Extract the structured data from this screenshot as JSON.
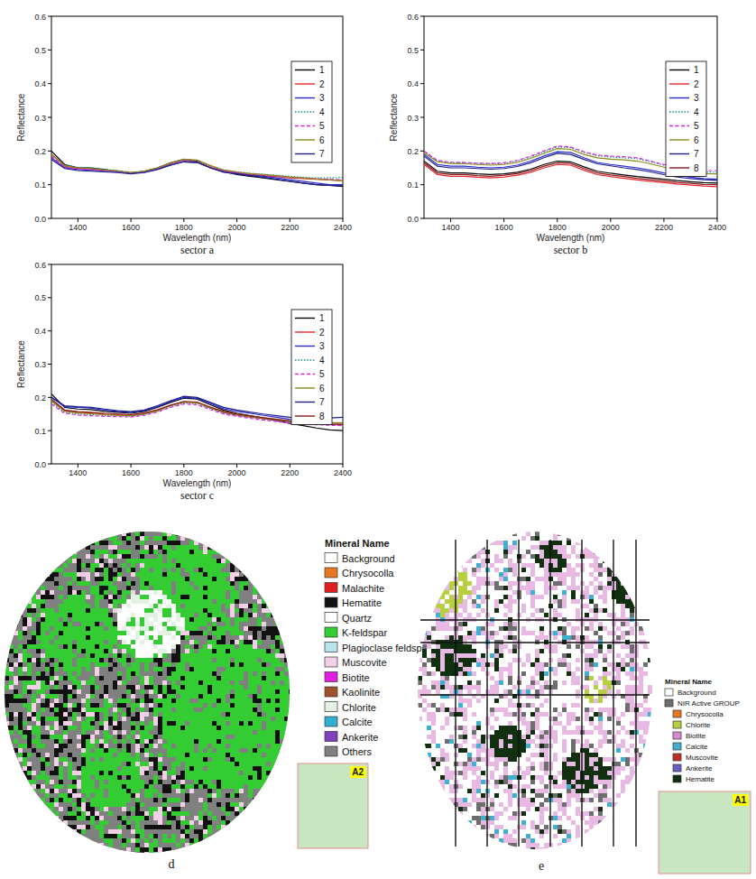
{
  "chart_data": [
    {
      "type": "line",
      "title": "sector a",
      "xlabel": "Wavelength (nm)",
      "ylabel": "Reflectance",
      "x": [
        1300,
        1350,
        1400,
        1450,
        1500,
        1550,
        1600,
        1650,
        1700,
        1750,
        1800,
        1850,
        1900,
        1950,
        2000,
        2050,
        2100,
        2150,
        2200,
        2250,
        2300,
        2350,
        2400
      ],
      "xlim": [
        1300,
        2400
      ],
      "ylim": [
        0,
        0.6
      ],
      "xticks": [
        1400,
        1600,
        1800,
        2000,
        2200,
        2400
      ],
      "yticks": [
        {
          "value": 0,
          "label": "0.0"
        },
        0.1,
        0.2,
        0.3,
        0.4,
        0.5,
        0.6
      ],
      "legend": "upper right",
      "series": [
        {
          "name": "1",
          "color": "#000000",
          "values": [
            0.2,
            0.16,
            0.15,
            0.15,
            0.145,
            0.14,
            0.135,
            0.14,
            0.15,
            0.165,
            0.175,
            0.17,
            0.15,
            0.14,
            0.13,
            0.125,
            0.12,
            0.115,
            0.11,
            0.105,
            0.1,
            0.098,
            0.095
          ]
        },
        {
          "name": "2",
          "color": "#e8262b",
          "values": [
            0.19,
            0.155,
            0.148,
            0.147,
            0.143,
            0.14,
            0.135,
            0.138,
            0.147,
            0.16,
            0.17,
            0.168,
            0.152,
            0.14,
            0.135,
            0.13,
            0.127,
            0.124,
            0.12,
            0.118,
            0.116,
            0.114,
            0.112
          ]
        },
        {
          "name": "3",
          "color": "#2a2ad0",
          "values": [
            0.18,
            0.15,
            0.145,
            0.143,
            0.14,
            0.138,
            0.134,
            0.137,
            0.146,
            0.158,
            0.168,
            0.166,
            0.15,
            0.138,
            0.133,
            0.128,
            0.125,
            0.12,
            0.115,
            0.11,
            0.105,
            0.1,
            0.1
          ]
        },
        {
          "name": "4",
          "color": "#138a8a",
          "line_style": "dotted",
          "values": [
            0.19,
            0.158,
            0.152,
            0.15,
            0.146,
            0.142,
            0.137,
            0.14,
            0.148,
            0.162,
            0.172,
            0.17,
            0.155,
            0.143,
            0.138,
            0.134,
            0.131,
            0.128,
            0.125,
            0.122,
            0.12,
            0.12,
            0.122
          ]
        },
        {
          "name": "5",
          "color": "#e020e0",
          "line_style": "dashed",
          "values": [
            0.185,
            0.152,
            0.146,
            0.145,
            0.142,
            0.139,
            0.135,
            0.139,
            0.148,
            0.163,
            0.174,
            0.172,
            0.156,
            0.142,
            0.136,
            0.132,
            0.129,
            0.126,
            0.122,
            0.12,
            0.118,
            0.116,
            0.115
          ]
        },
        {
          "name": "6",
          "color": "#8a8a1a",
          "values": [
            0.19,
            0.156,
            0.15,
            0.148,
            0.144,
            0.141,
            0.136,
            0.14,
            0.15,
            0.165,
            0.176,
            0.173,
            0.157,
            0.144,
            0.138,
            0.133,
            0.13,
            0.127,
            0.123,
            0.12,
            0.117,
            0.114,
            0.112
          ]
        },
        {
          "name": "7",
          "color": "#20208a",
          "values": [
            0.175,
            0.148,
            0.142,
            0.14,
            0.138,
            0.136,
            0.132,
            0.136,
            0.145,
            0.158,
            0.168,
            0.166,
            0.15,
            0.137,
            0.132,
            0.127,
            0.122,
            0.116,
            0.11,
            0.105,
            0.1,
            0.098,
            0.097
          ]
        }
      ]
    },
    {
      "type": "line",
      "title": "sector b",
      "xlabel": "Wavelength (nm)",
      "ylabel": "Reflectance",
      "x": [
        1300,
        1350,
        1400,
        1450,
        1500,
        1550,
        1600,
        1650,
        1700,
        1750,
        1800,
        1850,
        1900,
        1950,
        2000,
        2050,
        2100,
        2150,
        2200,
        2250,
        2300,
        2350,
        2400
      ],
      "xlim": [
        1300,
        2400
      ],
      "ylim": [
        0,
        0.6
      ],
      "xticks": [
        1400,
        1600,
        1800,
        2000,
        2200,
        2400
      ],
      "yticks": [
        {
          "value": 0,
          "label": "0.0"
        },
        0.1,
        0.2,
        0.3,
        0.4,
        0.5,
        0.6
      ],
      "legend": "upper right",
      "series": [
        {
          "name": "1",
          "color": "#000000",
          "values": [
            0.17,
            0.14,
            0.135,
            0.135,
            0.132,
            0.13,
            0.132,
            0.137,
            0.146,
            0.16,
            0.17,
            0.168,
            0.153,
            0.14,
            0.134,
            0.129,
            0.124,
            0.12,
            0.116,
            0.112,
            0.109,
            0.106,
            0.105
          ]
        },
        {
          "name": "2",
          "color": "#e8262b",
          "values": [
            0.16,
            0.13,
            0.125,
            0.125,
            0.122,
            0.12,
            0.123,
            0.128,
            0.137,
            0.15,
            0.16,
            0.158,
            0.143,
            0.13,
            0.124,
            0.119,
            0.114,
            0.11,
            0.106,
            0.102,
            0.099,
            0.096,
            0.094
          ]
        },
        {
          "name": "3",
          "color": "#2a2ad0",
          "values": [
            0.19,
            0.16,
            0.155,
            0.155,
            0.152,
            0.15,
            0.152,
            0.158,
            0.17,
            0.185,
            0.198,
            0.196,
            0.18,
            0.166,
            0.16,
            0.155,
            0.15,
            0.143,
            0.135,
            0.128,
            0.122,
            0.118,
            0.116
          ]
        },
        {
          "name": "4",
          "color": "#138a8a",
          "line_style": "dotted",
          "values": [
            0.2,
            0.17,
            0.165,
            0.165,
            0.163,
            0.162,
            0.163,
            0.17,
            0.182,
            0.198,
            0.212,
            0.21,
            0.196,
            0.186,
            0.182,
            0.18,
            0.177,
            0.168,
            0.158,
            0.148,
            0.142,
            0.138,
            0.137
          ]
        },
        {
          "name": "5",
          "color": "#e020e0",
          "line_style": "dashed",
          "values": [
            0.2,
            0.172,
            0.167,
            0.166,
            0.164,
            0.163,
            0.165,
            0.172,
            0.185,
            0.2,
            0.215,
            0.212,
            0.198,
            0.188,
            0.185,
            0.183,
            0.18,
            0.17,
            0.16,
            0.15,
            0.145,
            0.142,
            0.142
          ]
        },
        {
          "name": "6",
          "color": "#8a8a1a",
          "values": [
            0.195,
            0.168,
            0.163,
            0.162,
            0.16,
            0.158,
            0.16,
            0.166,
            0.178,
            0.193,
            0.207,
            0.205,
            0.19,
            0.18,
            0.176,
            0.174,
            0.17,
            0.162,
            0.152,
            0.142,
            0.137,
            0.133,
            0.132
          ]
        },
        {
          "name": "7",
          "color": "#20208a",
          "values": [
            0.185,
            0.155,
            0.15,
            0.15,
            0.148,
            0.146,
            0.148,
            0.154,
            0.165,
            0.18,
            0.193,
            0.19,
            0.175,
            0.162,
            0.156,
            0.15,
            0.145,
            0.138,
            0.13,
            0.123,
            0.118,
            0.115,
            0.113
          ]
        },
        {
          "name": "8",
          "color": "#8b1a1a",
          "values": [
            0.165,
            0.135,
            0.13,
            0.13,
            0.127,
            0.125,
            0.128,
            0.133,
            0.142,
            0.155,
            0.165,
            0.163,
            0.148,
            0.135,
            0.129,
            0.124,
            0.119,
            0.115,
            0.111,
            0.107,
            0.104,
            0.101,
            0.1
          ]
        }
      ]
    },
    {
      "type": "line",
      "title": "sector c",
      "xlabel": "Wavelength (nm)",
      "ylabel": "Reflectance",
      "x": [
        1300,
        1350,
        1400,
        1450,
        1500,
        1550,
        1600,
        1650,
        1700,
        1750,
        1800,
        1850,
        1900,
        1950,
        2000,
        2050,
        2100,
        2150,
        2200,
        2250,
        2300,
        2350,
        2400
      ],
      "xlim": [
        1300,
        2400
      ],
      "ylim": [
        0,
        0.6
      ],
      "xticks": [
        1400,
        1600,
        1800,
        2000,
        2200,
        2400
      ],
      "yticks": [
        {
          "value": 0,
          "label": "0.0"
        },
        0.1,
        0.2,
        0.3,
        0.4,
        0.5,
        0.6
      ],
      "legend": "upper right",
      "series": [
        {
          "name": "1",
          "color": "#000000",
          "values": [
            0.21,
            0.17,
            0.165,
            0.163,
            0.158,
            0.155,
            0.152,
            0.158,
            0.17,
            0.185,
            0.198,
            0.195,
            0.178,
            0.162,
            0.152,
            0.145,
            0.138,
            0.13,
            0.122,
            0.115,
            0.108,
            0.102,
            0.1
          ]
        },
        {
          "name": "2",
          "color": "#e8262b",
          "values": [
            0.19,
            0.16,
            0.155,
            0.153,
            0.15,
            0.148,
            0.146,
            0.151,
            0.162,
            0.175,
            0.186,
            0.184,
            0.168,
            0.154,
            0.147,
            0.141,
            0.136,
            0.131,
            0.127,
            0.124,
            0.121,
            0.119,
            0.118
          ]
        },
        {
          "name": "3",
          "color": "#2a2ad0",
          "values": [
            0.2,
            0.172,
            0.17,
            0.168,
            0.162,
            0.158,
            0.155,
            0.16,
            0.172,
            0.188,
            0.2,
            0.198,
            0.182,
            0.166,
            0.158,
            0.152,
            0.146,
            0.14,
            0.134,
            0.13,
            0.127,
            0.124,
            0.123
          ]
        },
        {
          "name": "4",
          "color": "#138a8a",
          "line_style": "dotted",
          "values": [
            0.185,
            0.155,
            0.15,
            0.148,
            0.146,
            0.144,
            0.143,
            0.148,
            0.158,
            0.172,
            0.183,
            0.181,
            0.166,
            0.153,
            0.146,
            0.14,
            0.135,
            0.13,
            0.126,
            0.123,
            0.12,
            0.118,
            0.117
          ]
        },
        {
          "name": "5",
          "color": "#e020e0",
          "line_style": "dashed",
          "values": [
            0.18,
            0.152,
            0.147,
            0.145,
            0.143,
            0.142,
            0.141,
            0.146,
            0.156,
            0.17,
            0.18,
            0.178,
            0.163,
            0.15,
            0.143,
            0.137,
            0.132,
            0.127,
            0.123,
            0.12,
            0.118,
            0.116,
            0.115
          ]
        },
        {
          "name": "6",
          "color": "#8a8a1a",
          "values": [
            0.19,
            0.158,
            0.153,
            0.151,
            0.148,
            0.146,
            0.145,
            0.15,
            0.16,
            0.175,
            0.186,
            0.184,
            0.169,
            0.156,
            0.149,
            0.143,
            0.138,
            0.134,
            0.13,
            0.127,
            0.125,
            0.124,
            0.124
          ]
        },
        {
          "name": "7",
          "color": "#20208a",
          "values": [
            0.2,
            0.175,
            0.172,
            0.17,
            0.165,
            0.16,
            0.157,
            0.162,
            0.175,
            0.19,
            0.203,
            0.2,
            0.185,
            0.17,
            0.162,
            0.156,
            0.15,
            0.145,
            0.14,
            0.137,
            0.136,
            0.138,
            0.14
          ]
        },
        {
          "name": "8",
          "color": "#8b1a1a",
          "values": [
            0.195,
            0.162,
            0.157,
            0.155,
            0.152,
            0.15,
            0.148,
            0.153,
            0.163,
            0.177,
            0.188,
            0.186,
            0.171,
            0.158,
            0.15,
            0.144,
            0.139,
            0.134,
            0.129,
            0.125,
            0.122,
            0.12,
            0.119
          ]
        }
      ]
    }
  ],
  "maps": [
    {
      "caption": "d",
      "legend_title": "Mineral Name",
      "legend": [
        {
          "name": "Background",
          "color": "#ffffff"
        },
        {
          "name": "Chrysocolla",
          "color": "#e87722"
        },
        {
          "name": "Malachite",
          "color": "#e02020"
        },
        {
          "name": "Hematite",
          "color": "#111111"
        },
        {
          "name": "Quartz",
          "color": "#ffffff"
        },
        {
          "name": "K-feldspar",
          "color": "#33cc33"
        },
        {
          "name": "Plagioclase feldspar",
          "color": "#b8e4ec"
        },
        {
          "name": "Muscovite",
          "color": "#f4d0e8"
        },
        {
          "name": "Biotite",
          "color": "#e020e0"
        },
        {
          "name": "Kaolinite",
          "color": "#a0522d"
        },
        {
          "name": "Chlorite",
          "color": "#e4f2e4"
        },
        {
          "name": "Calcite",
          "color": "#30b0d0"
        },
        {
          "name": "Ankerite",
          "color": "#8040c0"
        },
        {
          "name": "Others",
          "color": "#808080"
        }
      ]
    },
    {
      "caption": "e",
      "legend_title": "Mineral Name",
      "legend": [
        {
          "name": "Background",
          "color": "#ffffff"
        },
        {
          "name": "NIR Active GROUP",
          "color": "#6e6e6e",
          "items": [
            {
              "name": "Chrysocolla",
              "color": "#e87722"
            },
            {
              "name": "Chlorite",
              "color": "#b8d040"
            },
            {
              "name": "Biotite",
              "color": "#d88ad0"
            },
            {
              "name": "Calcite",
              "color": "#40b0d0"
            },
            {
              "name": "Muscovite",
              "color": "#c03020"
            },
            {
              "name": "Ankerite",
              "color": "#6060c0"
            },
            {
              "name": "Hematite",
              "color": "#103010"
            }
          ]
        }
      ]
    }
  ],
  "annotations": [
    {
      "label": "A2",
      "color": "#c8e6c0"
    },
    {
      "label": "A1",
      "color": "#c8e6c0"
    }
  ]
}
